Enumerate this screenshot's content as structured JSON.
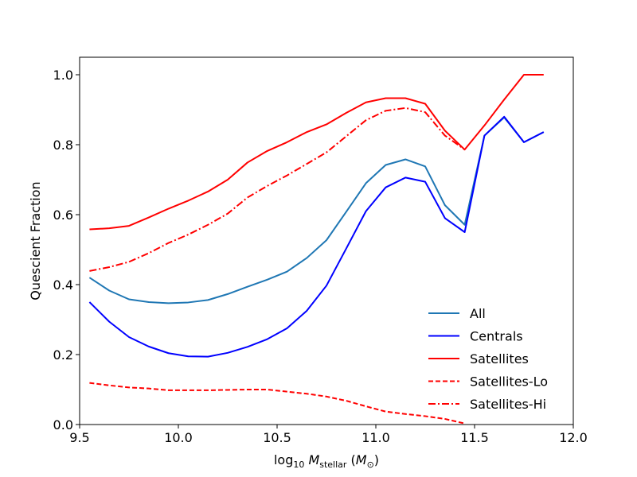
{
  "chart_data": {
    "type": "line",
    "xlabel": "log10 M_stellar (M_⊙)",
    "ylabel": "Quescient Fraction",
    "xlim": [
      9.5,
      12.0
    ],
    "ylim": [
      0.0,
      1.05
    ],
    "xticks": [
      "9.5",
      "10.0",
      "10.5",
      "11.0",
      "11.5",
      "12.0"
    ],
    "xtick_values": [
      9.5,
      10.0,
      10.5,
      11.0,
      11.5,
      12.0
    ],
    "yticks": [
      "0.0",
      "0.2",
      "0.4",
      "0.6",
      "0.8",
      "1.0"
    ],
    "ytick_values": [
      0.0,
      0.2,
      0.4,
      0.6,
      0.8,
      1.0
    ],
    "grid": false,
    "legend_position": "lower-right",
    "series": [
      {
        "name": "All",
        "color": "#1f77b4",
        "dash": "solid",
        "x": [
          9.55,
          9.65,
          9.75,
          9.85,
          9.95,
          10.05,
          10.15,
          10.25,
          10.35,
          10.45,
          10.55,
          10.65,
          10.75,
          10.85,
          10.95,
          11.05,
          11.15,
          11.25,
          11.35,
          11.45,
          11.55,
          11.65,
          11.75,
          11.85
        ],
        "y": [
          0.42,
          0.383,
          0.358,
          0.35,
          0.347,
          0.349,
          0.356,
          0.373,
          0.394,
          0.414,
          0.437,
          0.476,
          0.527,
          0.608,
          0.69,
          0.742,
          0.758,
          0.738,
          0.627,
          0.571,
          0.826,
          0.878,
          0.807,
          0.836
        ]
      },
      {
        "name": "Centrals",
        "color": "#0000ff",
        "dash": "solid",
        "x": [
          9.55,
          9.65,
          9.75,
          9.85,
          9.95,
          10.05,
          10.15,
          10.25,
          10.35,
          10.45,
          10.55,
          10.65,
          10.75,
          10.85,
          10.95,
          11.05,
          11.15,
          11.25,
          11.35,
          11.45,
          11.55,
          11.65,
          11.75,
          11.85
        ],
        "y": [
          0.35,
          0.294,
          0.25,
          0.223,
          0.204,
          0.195,
          0.194,
          0.205,
          0.222,
          0.244,
          0.275,
          0.325,
          0.397,
          0.503,
          0.61,
          0.678,
          0.706,
          0.694,
          0.59,
          0.55,
          0.826,
          0.88,
          0.807,
          0.836
        ]
      },
      {
        "name": "Satellites",
        "color": "#ff0000",
        "dash": "solid",
        "x": [
          9.55,
          9.65,
          9.75,
          9.85,
          9.95,
          10.05,
          10.15,
          10.25,
          10.35,
          10.45,
          10.55,
          10.65,
          10.75,
          10.85,
          10.95,
          11.05,
          11.15,
          11.25,
          11.35,
          11.45,
          11.55,
          11.65,
          11.75,
          11.85
        ],
        "y": [
          0.558,
          0.561,
          0.568,
          0.592,
          0.617,
          0.64,
          0.666,
          0.7,
          0.749,
          0.782,
          0.807,
          0.836,
          0.858,
          0.891,
          0.921,
          0.933,
          0.933,
          0.917,
          0.84,
          0.786,
          0.855,
          0.929,
          1.0,
          1.0
        ]
      },
      {
        "name": "Satellites-Lo",
        "color": "#ff0000",
        "dash": "dashed",
        "x": [
          9.55,
          9.65,
          9.75,
          9.85,
          9.95,
          10.05,
          10.15,
          10.25,
          10.35,
          10.45,
          10.55,
          10.65,
          10.75,
          10.85,
          10.95,
          11.05,
          11.15,
          11.25,
          11.35,
          11.45
        ],
        "y": [
          0.119,
          0.112,
          0.106,
          0.103,
          0.098,
          0.098,
          0.098,
          0.099,
          0.1,
          0.1,
          0.094,
          0.088,
          0.08,
          0.068,
          0.052,
          0.037,
          0.03,
          0.024,
          0.016,
          0.003
        ]
      },
      {
        "name": "Satellites-Hi",
        "color": "#ff0000",
        "dash": "dashdot",
        "x": [
          9.55,
          9.65,
          9.75,
          9.85,
          9.95,
          10.05,
          10.15,
          10.25,
          10.35,
          10.45,
          10.55,
          10.65,
          10.75,
          10.85,
          10.95,
          11.05,
          11.15,
          11.25,
          11.35,
          11.45
        ],
        "y": [
          0.439,
          0.45,
          0.465,
          0.49,
          0.519,
          0.543,
          0.571,
          0.603,
          0.649,
          0.682,
          0.712,
          0.745,
          0.778,
          0.824,
          0.87,
          0.897,
          0.905,
          0.893,
          0.826,
          0.786
        ]
      }
    ]
  }
}
